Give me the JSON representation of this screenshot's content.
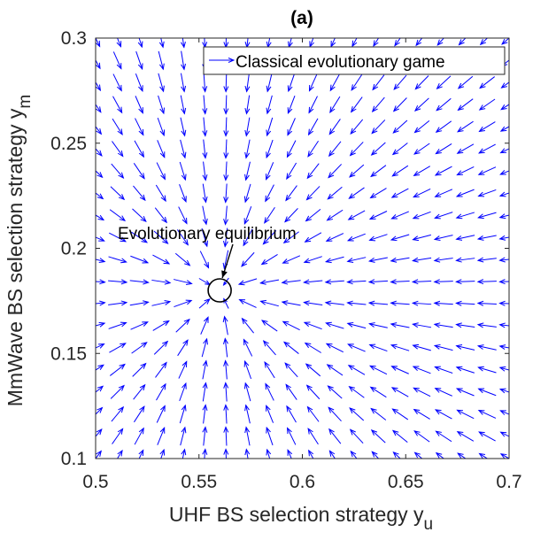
{
  "chart_data": {
    "type": "quiver",
    "title": "(a)",
    "xlabel": "UHF BS selection strategy y",
    "xlabel_sub": "u",
    "ylabel": "MmWave BS selection strategy y",
    "ylabel_sub": "m",
    "xlim": [
      0.5,
      0.7
    ],
    "ylim": [
      0.1,
      0.3
    ],
    "xticks": [
      "0.5",
      "0.55",
      "0.6",
      "0.65",
      "0.7"
    ],
    "yticks": [
      "0.1",
      "0.15",
      "0.2",
      "0.25",
      "0.3"
    ],
    "grid": false,
    "legend": {
      "position": "top-right",
      "entries": [
        "Classical evolutionary game"
      ]
    },
    "series": [
      {
        "name": "Classical evolutionary game",
        "color": "#0000ff",
        "grid_x": {
          "start": 0.5,
          "stop": 0.7,
          "count": 20
        },
        "grid_y": {
          "start": 0.1,
          "stop": 0.3,
          "count": 20
        },
        "field_center": [
          0.56,
          0.18
        ]
      }
    ],
    "annotations": [
      {
        "text": "Evolutionary equilibrium",
        "x": 0.56,
        "y": 0.18,
        "marker": "circle"
      }
    ]
  }
}
